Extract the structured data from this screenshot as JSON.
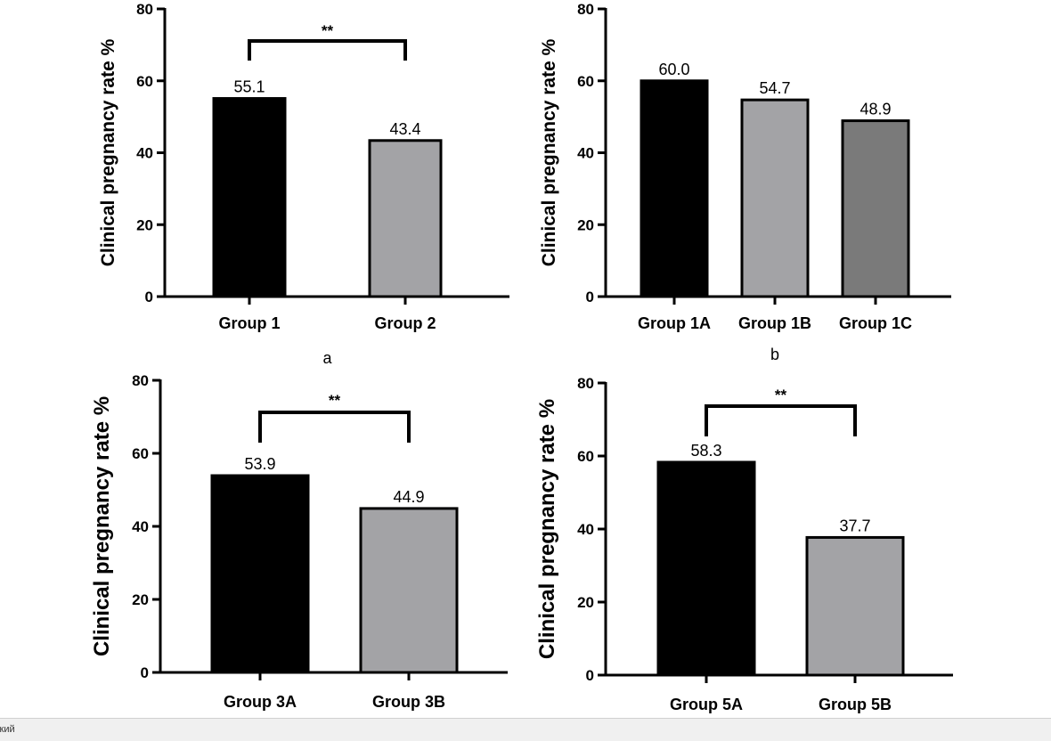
{
  "chart_data": [
    {
      "type": "bar",
      "panel_label": "a",
      "ylabel": "Clinical pregnancy rate  %",
      "ylim": [
        0,
        80
      ],
      "yticks": [
        0,
        20,
        40,
        60,
        80
      ],
      "categories": [
        "Group 1",
        "Group 2"
      ],
      "values": [
        55.1,
        43.4
      ],
      "value_labels": [
        "55.1",
        "43.4"
      ],
      "bar_colors": [
        "#000000",
        "#a3a3a6"
      ],
      "significance": {
        "from": 0,
        "to": 1,
        "label": "**"
      }
    },
    {
      "type": "bar",
      "panel_label": "b",
      "ylabel": "Clinical pregnancy rate  %",
      "ylim": [
        0,
        80
      ],
      "yticks": [
        0,
        20,
        40,
        60,
        80
      ],
      "categories": [
        "Group 1A",
        "Group 1B",
        "Group 1C"
      ],
      "values": [
        60.0,
        54.7,
        48.9
      ],
      "value_labels": [
        "60.0",
        "54.7",
        "48.9"
      ],
      "bar_colors": [
        "#000000",
        "#a3a3a6",
        "#7a7a7a"
      ]
    },
    {
      "type": "bar",
      "panel_label": "",
      "ylabel": "Clinical pregnancy rate %",
      "ylim": [
        0,
        80
      ],
      "yticks": [
        0,
        20,
        40,
        60,
        80
      ],
      "categories": [
        "Group 3A",
        "Group 3B"
      ],
      "values": [
        53.9,
        44.9
      ],
      "value_labels": [
        "53.9",
        "44.9"
      ],
      "bar_colors": [
        "#000000",
        "#a3a3a6"
      ],
      "significance": {
        "from": 0,
        "to": 1,
        "label": "**"
      }
    },
    {
      "type": "bar",
      "panel_label": "",
      "ylabel": "Clinical pregnancy rate %",
      "ylim": [
        0,
        80
      ],
      "yticks": [
        0,
        20,
        40,
        60,
        80
      ],
      "categories": [
        "Group 5A",
        "Group 5B"
      ],
      "values": [
        58.3,
        37.7
      ],
      "value_labels": [
        "58.3",
        "37.7"
      ],
      "bar_colors": [
        "#000000",
        "#a3a3a6"
      ],
      "significance": {
        "from": 0,
        "to": 1,
        "label": "**"
      }
    }
  ],
  "status_bar": {
    "text": "ский"
  }
}
